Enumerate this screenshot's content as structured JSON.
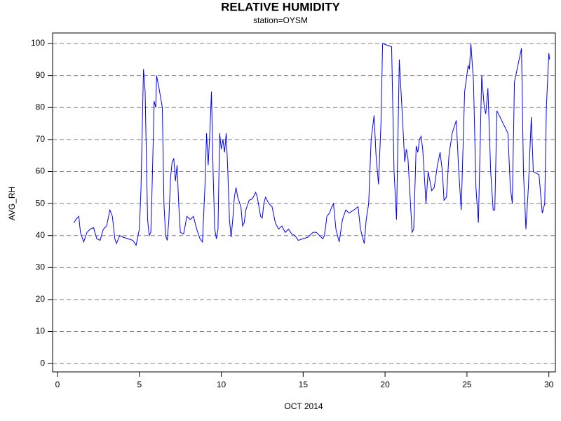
{
  "chart_data": {
    "type": "line",
    "title": "RELATIVE HUMIDITY",
    "subtitle": "station=OYSM",
    "x_label": "OCT 2014",
    "y_label": "AVG_RH",
    "color": "#0000ff",
    "grid": true,
    "xlim": [
      -0.3,
      30.4
    ],
    "ylim": [
      -2.6,
      103.3
    ],
    "xticks": [
      0,
      5,
      10,
      15,
      20,
      25,
      30
    ],
    "yticks": [
      0,
      10,
      20,
      30,
      40,
      50,
      60,
      70,
      80,
      90,
      100
    ],
    "x": [
      1.0,
      1.2,
      1.3,
      1.4,
      1.6,
      1.8,
      2.0,
      2.2,
      2.4,
      2.6,
      2.8,
      3.0,
      3.2,
      3.35,
      3.5,
      3.6,
      3.8,
      4.0,
      4.3,
      4.6,
      4.8,
      5.0,
      5.1,
      5.2,
      5.25,
      5.35,
      5.5,
      5.6,
      5.7,
      5.8,
      5.9,
      6.0,
      6.05,
      6.2,
      6.4,
      6.5,
      6.6,
      6.7,
      6.8,
      6.9,
      7.0,
      7.1,
      7.2,
      7.3,
      7.4,
      7.5,
      7.7,
      7.9,
      8.1,
      8.3,
      8.5,
      8.7,
      8.85,
      9.0,
      9.1,
      9.2,
      9.3,
      9.4,
      9.5,
      9.6,
      9.7,
      9.8,
      9.9,
      10.0,
      10.1,
      10.2,
      10.3,
      10.4,
      10.5,
      10.6,
      10.7,
      10.8,
      10.9,
      11.0,
      11.2,
      11.3,
      11.4,
      11.5,
      11.7,
      11.9,
      12.1,
      12.2,
      12.4,
      12.5,
      12.6,
      12.7,
      12.9,
      13.1,
      13.3,
      13.5,
      13.7,
      13.9,
      14.1,
      14.3,
      14.5,
      14.7,
      15.0,
      15.3,
      15.6,
      15.8,
      16.0,
      16.2,
      16.3,
      16.45,
      16.6,
      16.75,
      16.85,
      17.0,
      17.2,
      17.4,
      17.6,
      17.8,
      18.1,
      18.35,
      18.5,
      18.73,
      18.85,
      19.0,
      19.15,
      19.33,
      19.45,
      19.6,
      19.75,
      19.85,
      20.4,
      20.55,
      20.7,
      20.87,
      21.05,
      21.2,
      21.3,
      21.4,
      21.65,
      21.75,
      21.9,
      22.0,
      22.1,
      22.2,
      22.3,
      22.5,
      22.63,
      22.85,
      23.0,
      23.2,
      23.36,
      23.5,
      23.6,
      23.75,
      23.9,
      24.1,
      24.35,
      24.5,
      24.65,
      24.86,
      25.07,
      25.15,
      25.24,
      25.4,
      25.55,
      25.7,
      25.9,
      26.06,
      26.15,
      26.28,
      26.45,
      26.6,
      26.7,
      26.83,
      27.5,
      27.65,
      27.77,
      27.9,
      28.33,
      28.45,
      28.6,
      28.75,
      28.93,
      29.05,
      29.4,
      29.6,
      29.75,
      29.85,
      30.0,
      30.05
    ],
    "values": [
      44,
      45.5,
      46,
      41,
      38,
      41,
      42,
      42.5,
      39,
      38.5,
      42,
      43,
      48,
      46,
      39,
      37.5,
      40,
      39.5,
      39,
      38.5,
      37,
      42,
      55,
      80,
      92,
      85,
      45,
      40,
      41,
      60,
      82,
      80,
      90,
      86,
      80,
      50,
      40,
      38.5,
      45,
      58,
      63,
      64,
      57,
      62,
      50,
      41,
      40.5,
      46,
      45,
      46,
      42,
      39,
      38,
      55,
      72,
      62,
      72,
      85,
      60,
      42,
      39,
      42,
      72,
      67,
      70,
      66,
      72,
      60,
      45,
      39.5,
      45,
      52,
      55,
      52,
      49,
      43,
      44,
      48,
      51,
      51.5,
      53.5,
      52,
      46,
      45.5,
      50,
      52,
      50,
      49,
      44,
      42,
      43,
      41,
      42,
      40.5,
      40,
      38.5,
      39,
      39.5,
      41,
      41,
      40,
      39,
      40,
      46,
      47,
      49,
      50,
      42,
      38,
      45,
      48,
      47,
      48,
      49,
      42,
      37.5,
      45,
      50,
      70,
      77.5,
      65,
      56,
      75,
      100,
      99,
      60,
      45,
      95,
      78,
      63,
      67,
      64,
      41,
      42,
      68,
      66,
      70,
      71,
      67,
      50,
      60,
      54,
      55,
      62,
      66,
      60,
      51,
      52,
      65,
      72,
      76,
      60,
      48,
      85,
      93,
      92,
      100,
      88,
      55,
      44,
      90,
      80,
      78,
      86,
      60,
      48,
      48,
      79,
      72,
      55,
      50,
      88,
      98.5,
      60,
      42,
      55,
      77,
      60,
      59,
      47,
      50,
      80,
      97,
      95
    ]
  }
}
